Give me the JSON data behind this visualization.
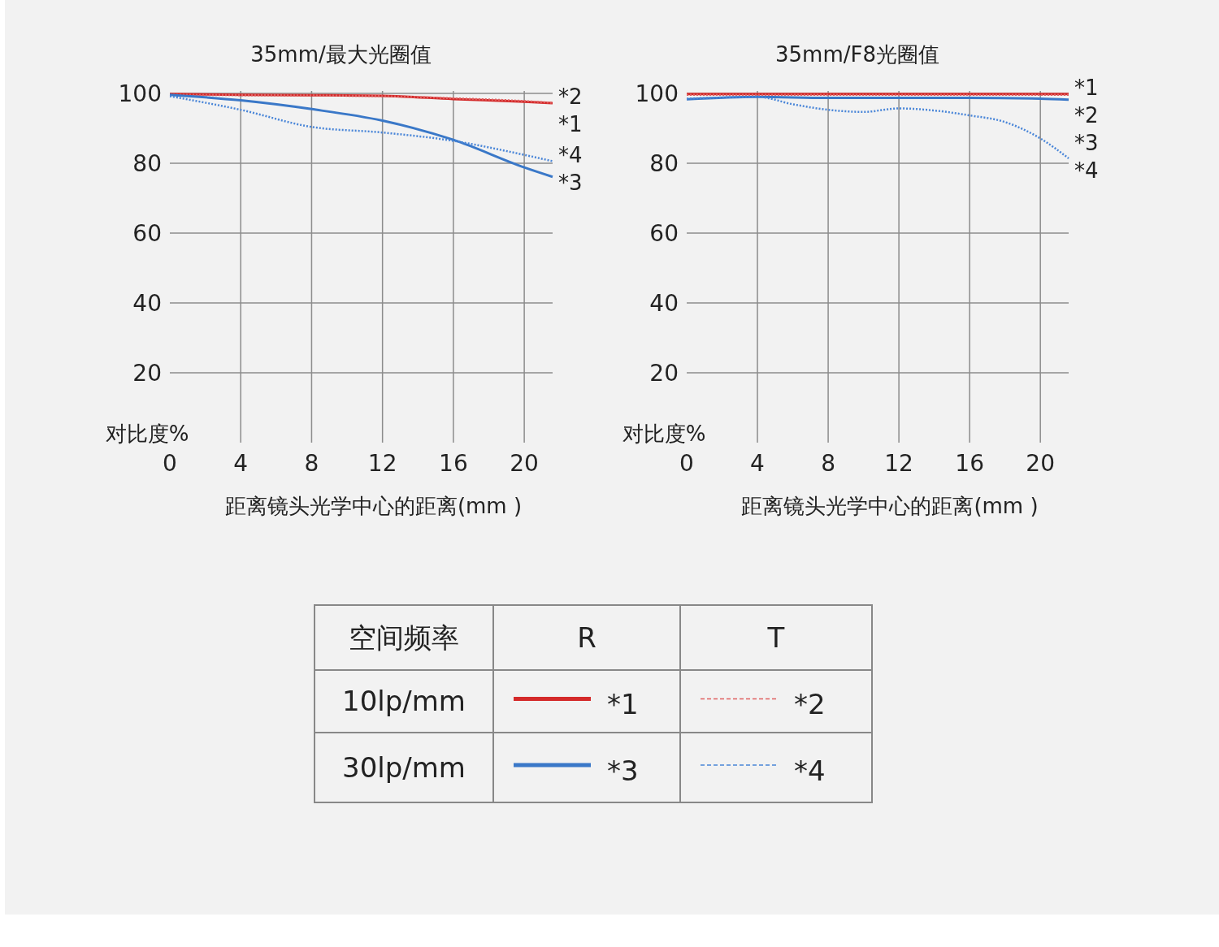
{
  "chart_data": [
    {
      "type": "line",
      "title": "35mm/最大光圈值",
      "xlabel": "距离镜头光学中心的距离(mm )",
      "ylabel": "对比度%",
      "x": [
        0,
        4,
        8,
        12,
        16,
        20,
        21.6
      ],
      "xlim": [
        0,
        21.6
      ],
      "ylim": [
        0,
        100
      ],
      "xticks": [
        0,
        4,
        8,
        12,
        16,
        20
      ],
      "yticks": [
        20,
        40,
        60,
        80,
        100
      ],
      "grid": true,
      "legend": "bottom",
      "annotations": [
        "空间频率",
        "R",
        "T",
        "10lp/mm",
        "30lp/mm"
      ],
      "series": [
        {
          "name": "*1",
          "color": "#d42a2a",
          "line_style": "solid",
          "values": [
            99.8,
            99.6,
            99.5,
            99.3,
            98.4,
            97.6,
            97.2
          ]
        },
        {
          "name": "*2",
          "color": "#e06060",
          "line_style": "dotted",
          "values": [
            99.6,
            99.5,
            99.4,
            99.2,
            98.6,
            97.8,
            97.3
          ]
        },
        {
          "name": "*3",
          "color": "#3a78c8",
          "line_style": "solid",
          "values": [
            99.6,
            98,
            95.5,
            92.2,
            86.7,
            78.8,
            76.1
          ]
        },
        {
          "name": "*4",
          "color": "#4a86d8",
          "line_style": "dotted",
          "values": [
            99.2,
            95.3,
            90.4,
            88.8,
            86.4,
            82.4,
            80.6
          ]
        }
      ]
    },
    {
      "type": "line",
      "title": "35mm/F8光圈值",
      "xlabel": "距离镜头光学中心的距离(mm )",
      "ylabel": "对比度%",
      "xlim": [
        0,
        21.6
      ],
      "ylim": [
        0,
        100
      ],
      "xticks": [
        0,
        4,
        8,
        12,
        16,
        20
      ],
      "yticks": [
        20,
        40,
        60,
        80,
        100
      ],
      "grid": true,
      "series": [
        {
          "name": "*1",
          "color": "#d42a2a",
          "line_style": "solid",
          "x": [
            0,
            21.6
          ],
          "values": [
            99.8,
            99.8
          ]
        },
        {
          "name": "*3",
          "color": "#3a78c8",
          "line_style": "solid",
          "x": [
            0,
            4,
            8,
            12,
            16,
            20,
            21.6
          ],
          "values": [
            98.3,
            99,
            98.7,
            98.7,
            98.7,
            98.5,
            98.2
          ]
        },
        {
          "name": "*2",
          "color": "#e06060",
          "line_style": "dotted",
          "x": [
            0,
            21.6
          ],
          "values": [
            99.6,
            99.6
          ]
        },
        {
          "name": "*4",
          "color": "#4a86d8",
          "line_style": "dotted",
          "x": [
            0,
            4,
            6,
            8,
            10,
            12,
            14,
            16,
            18,
            20,
            21.6
          ],
          "values": [
            98.5,
            99,
            96.9,
            95.3,
            94.7,
            95.7,
            95.1,
            93.7,
            91.8,
            87.1,
            81.4
          ]
        }
      ]
    }
  ]
}
